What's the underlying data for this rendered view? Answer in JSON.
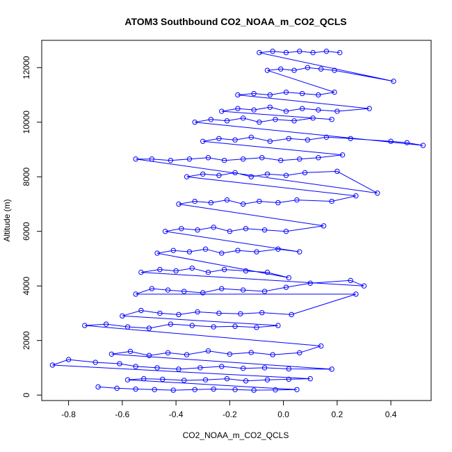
{
  "chart_data": {
    "type": "scatter",
    "title": "ATOM3 Southbound CO2_NOAA_m_CO2_QCLS",
    "xlabel": "CO2_NOAA_m_CO2_QCLS",
    "ylabel": "Altitude (m)",
    "xlim": [
      -0.9,
      0.55
    ],
    "ylim": [
      -200,
      13000
    ],
    "xticks": [
      -0.8,
      -0.6,
      -0.4,
      -0.2,
      0.0,
      0.2,
      0.4
    ],
    "xtick_labels": [
      "-0.8",
      "-0.6",
      "-0.4",
      "-0.2",
      "0.0",
      "0.2",
      "0.4"
    ],
    "yticks": [
      0,
      2000,
      4000,
      6000,
      8000,
      10000,
      12000
    ],
    "ytick_labels": [
      "0",
      "2000",
      "4000",
      "6000",
      "8000",
      "10000",
      "12000"
    ],
    "grid": false,
    "series": [
      {
        "name": "CO2_NOAA_m_CO2_QCLS",
        "color": "#0000ff",
        "marker": "open-circle",
        "connected": true,
        "x": [
          -0.69,
          -0.62,
          -0.55,
          -0.48,
          -0.41,
          -0.33,
          -0.26,
          -0.18,
          -0.11,
          -0.03,
          0.05,
          -0.58,
          -0.52,
          -0.45,
          -0.37,
          -0.29,
          -0.21,
          -0.14,
          -0.06,
          0.02,
          0.1,
          -0.86,
          -0.8,
          -0.7,
          -0.61,
          -0.55,
          -0.47,
          -0.39,
          -0.31,
          -0.23,
          -0.15,
          -0.07,
          0.02,
          0.18,
          -0.64,
          -0.57,
          -0.5,
          -0.43,
          -0.36,
          -0.28,
          -0.2,
          -0.12,
          -0.04,
          0.06,
          0.14,
          -0.74,
          -0.66,
          -0.58,
          -0.5,
          -0.42,
          -0.34,
          -0.26,
          -0.18,
          -0.1,
          -0.02,
          -0.6,
          -0.53,
          -0.46,
          -0.39,
          -0.32,
          -0.24,
          -0.16,
          -0.08,
          0.03,
          0.27,
          -0.55,
          -0.49,
          -0.43,
          -0.37,
          -0.3,
          -0.23,
          -0.15,
          -0.07,
          0.01,
          0.1,
          0.25,
          0.3,
          -0.53,
          -0.46,
          -0.4,
          -0.34,
          -0.28,
          -0.22,
          -0.14,
          -0.06,
          0.02,
          -0.47,
          -0.41,
          -0.35,
          -0.29,
          -0.23,
          -0.17,
          -0.1,
          -0.02,
          0.06,
          -0.44,
          -0.38,
          -0.32,
          -0.26,
          -0.2,
          -0.14,
          -0.07,
          0.01,
          0.15,
          -0.39,
          -0.33,
          -0.27,
          -0.21,
          -0.15,
          -0.09,
          -0.02,
          0.05,
          0.18,
          0.27,
          -0.36,
          -0.3,
          -0.24,
          -0.18,
          -0.12,
          -0.06,
          0.01,
          0.08,
          0.2,
          0.35,
          -0.55,
          -0.49,
          -0.42,
          -0.35,
          -0.28,
          -0.22,
          -0.15,
          -0.08,
          -0.01,
          0.06,
          0.13,
          0.22,
          -0.3,
          -0.24,
          -0.18,
          -0.12,
          -0.05,
          0.02,
          0.09,
          0.16,
          0.25,
          0.4,
          0.46,
          0.52,
          -0.33,
          -0.27,
          -0.21,
          -0.15,
          -0.09,
          -0.03,
          0.04,
          0.11,
          0.18,
          -0.23,
          -0.17,
          -0.11,
          -0.05,
          0.01,
          0.07,
          0.13,
          0.2,
          0.32,
          -0.17,
          -0.11,
          -0.05,
          0.01,
          0.07,
          0.13,
          0.19,
          -0.06,
          -0.01,
          0.04,
          0.09,
          0.14,
          0.19,
          0.41,
          -0.09,
          -0.04,
          0.01,
          0.06,
          0.11,
          0.16,
          0.21
        ],
        "y": [
          300,
          250,
          220,
          200,
          180,
          200,
          220,
          200,
          180,
          190,
          200,
          560,
          600,
          580,
          540,
          560,
          600,
          520,
          560,
          580,
          600,
          1100,
          1300,
          1200,
          1150,
          1050,
          1000,
          950,
          1000,
          1050,
          980,
          1000,
          960,
          950,
          1500,
          1600,
          1450,
          1550,
          1480,
          1620,
          1500,
          1560,
          1480,
          1550,
          1800,
          2550,
          2600,
          2500,
          2450,
          2600,
          2550,
          2500,
          2520,
          2480,
          2550,
          2900,
          3100,
          3000,
          2950,
          3050,
          3000,
          2980,
          3020,
          2950,
          3700,
          3700,
          3900,
          3850,
          3800,
          3750,
          3900,
          3850,
          3800,
          3950,
          4100,
          4200,
          4000,
          4500,
          4600,
          4550,
          4650,
          4500,
          4600,
          4550,
          4500,
          4300,
          5200,
          5300,
          5250,
          5350,
          5200,
          5300,
          5250,
          5350,
          5250,
          6000,
          6100,
          6050,
          6150,
          6000,
          6100,
          6050,
          6000,
          6200,
          7000,
          7100,
          7050,
          7150,
          7000,
          7100,
          7050,
          7150,
          7100,
          7300,
          8000,
          8100,
          8050,
          8150,
          8000,
          8100,
          8050,
          8150,
          8200,
          7400,
          8650,
          8650,
          8600,
          8650,
          8700,
          8600,
          8650,
          8700,
          8600,
          8650,
          8700,
          8800,
          9300,
          9400,
          9350,
          9450,
          9300,
          9400,
          9350,
          9450,
          9400,
          9300,
          9250,
          9150,
          10000,
          10100,
          10050,
          10150,
          10000,
          10100,
          10050,
          10150,
          10100,
          10400,
          10500,
          10450,
          10550,
          10400,
          10500,
          10450,
          10400,
          10500,
          11000,
          11050,
          11000,
          11100,
          11050,
          11000,
          11100,
          11900,
          11950,
          11900,
          12000,
          11950,
          11900,
          11500,
          12550,
          12600,
          12550,
          12600,
          12550,
          12600,
          12550
        ]
      }
    ]
  }
}
